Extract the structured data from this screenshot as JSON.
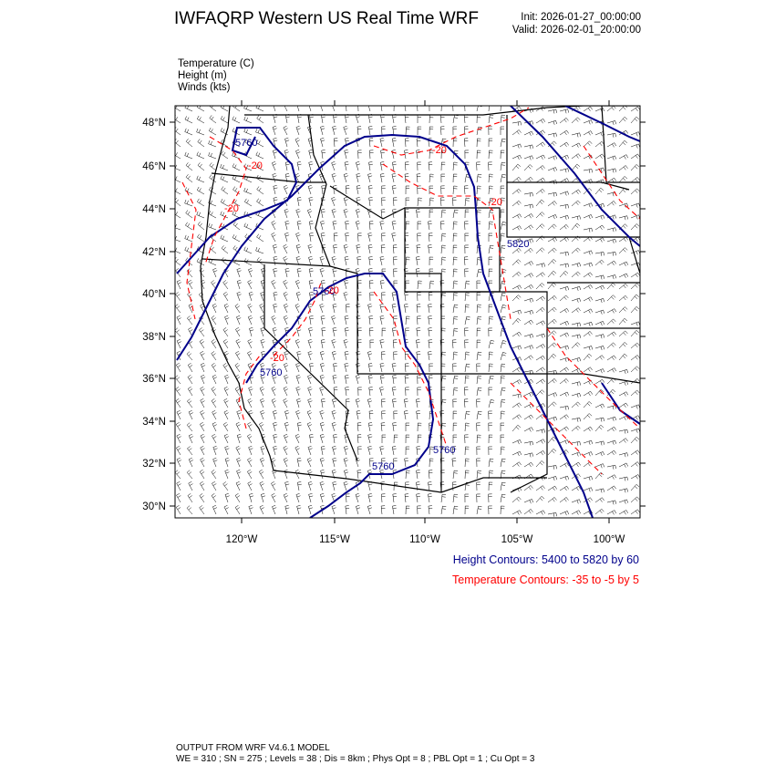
{
  "title": "IWFAQRP Western US Real Time WRF",
  "init": "Init: 2026-01-27_00:00:00",
  "valid": "Valid: 2026-02-01_20:00:00",
  "fields": {
    "temperature": "Temperature   (C)",
    "height": "Height   (m)",
    "winds": "Winds   (kts)"
  },
  "axes": {
    "lat_labels": [
      "48°N",
      "46°N",
      "44°N",
      "42°N",
      "40°N",
      "38°N",
      "36°N",
      "34°N",
      "32°N",
      "30°N"
    ],
    "lon_labels": [
      "120°W",
      "115°W",
      "110°W",
      "105°W",
      "100°W"
    ]
  },
  "contour_labels": {
    "height": [
      "5760",
      "5760",
      "5760",
      "5760",
      "5760",
      "5820"
    ],
    "temperature": [
      "-20",
      "-20",
      "-20",
      "-20",
      "-20",
      "-20"
    ]
  },
  "notes": {
    "height": "Height Contours: 5400 to 5820 by 60",
    "temperature": "Temperature Contours: -35 to -5 by 5"
  },
  "colors": {
    "height": "#00008b",
    "temperature": "#ff0000",
    "barbs": "#000000"
  },
  "footer": {
    "line1": "OUTPUT FROM WRF V4.6.1 MODEL",
    "line2": "WE = 310 ; SN = 275 ; Levels = 38 ; Dis = 8km ; Phys Opt = 8 ; PBL Opt = 1 ; Cu Opt = 3"
  }
}
